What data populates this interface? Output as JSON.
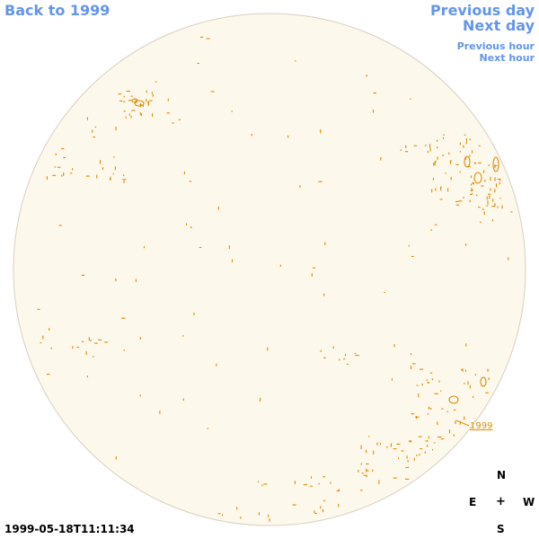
{
  "nav": {
    "back": "Back to 1999",
    "previous_day": "Previous day",
    "next_day": "Next day",
    "previous_hour": "Previous hour",
    "next_hour": "Next hour"
  },
  "compass": {
    "north": "N",
    "east": "E",
    "center": "+",
    "west": "W",
    "south": "S"
  },
  "timestamp": "1999-05-18T11:11:34",
  "region_label": "1999",
  "colors": {
    "disk_fill": "#fdf8ec",
    "disk_edge": "#d8d0c0",
    "contour": "#e08a00",
    "link": "#6495ed"
  }
}
